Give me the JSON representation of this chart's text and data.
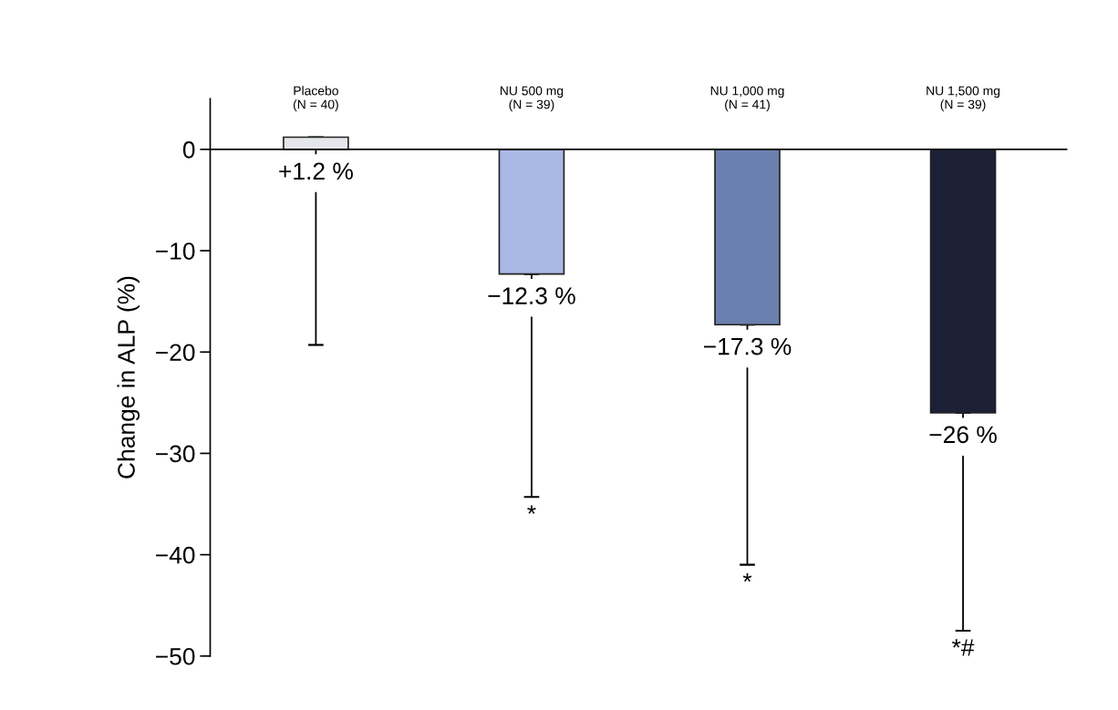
{
  "chart_data": {
    "type": "bar",
    "ylabel": "Change in ALP (%)",
    "categories": [
      "Placebo\n(N = 40)",
      "NU 500 mg\n(N = 39)",
      "NU 1,000 mg\n(N = 41)",
      "NU 1,500 mg\n(N = 39)"
    ],
    "values": [
      1.2,
      -12.3,
      -17.3,
      -26
    ],
    "colors": [
      "#e4e6ec",
      "#a9b9e6",
      "#6b80ae",
      "#1b2036"
    ],
    "errors": [
      [
        -19.3,
        1.2
      ],
      [
        -34.3,
        -12.3
      ],
      [
        -41,
        -17.3
      ],
      [
        -47.5,
        -26
      ]
    ],
    "value_labels": [
      "+1.2 %",
      "−12.3 %",
      "−17.3 %",
      "−26 %"
    ],
    "ylim": [
      -50,
      5
    ],
    "yticks": [
      {
        "value": 0,
        "label": "0"
      },
      {
        "value": -10,
        "label": "−10"
      },
      {
        "value": -20,
        "label": "−20"
      },
      {
        "value": -30,
        "label": "−30"
      },
      {
        "value": -40,
        "label": "−40"
      },
      {
        "value": -50,
        "label": "−50"
      }
    ],
    "annotations": [
      "*",
      "*",
      "*#"
    ],
    "legend": false
  }
}
